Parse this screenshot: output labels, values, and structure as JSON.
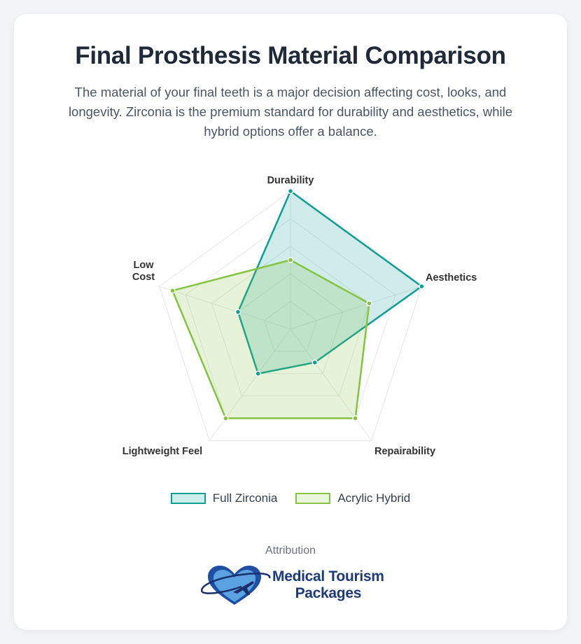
{
  "header": {
    "title": "Final Prosthesis Material Comparison",
    "subtitle": "The material of your final teeth is a major decision affecting cost, looks, and longevity. Zirconia is the premium standard for durability and aesthetics, while hybrid options offer a balance."
  },
  "chart_data": {
    "type": "radar",
    "title": "Final Prosthesis Material Comparison",
    "categories": [
      "Durability",
      "Aesthetics",
      "Repairability",
      "Lightweight Feel",
      "Low Cost"
    ],
    "range": [
      0,
      10
    ],
    "grid_rings": 5,
    "series": [
      {
        "name": "Full Zirconia",
        "values": [
          10,
          10,
          3,
          4,
          4
        ],
        "stroke": "#0d9e94",
        "fill": "rgba(13,158,148,0.2)"
      },
      {
        "name": "Acrylic Hybrid",
        "values": [
          5,
          6,
          8,
          8,
          9
        ],
        "stroke": "#84c441",
        "fill": "rgba(132,196,65,0.2)"
      }
    ],
    "legend_position": "bottom"
  },
  "legend": [
    {
      "label": "Full Zirconia",
      "stroke": "#0d9e94",
      "fill": "#cdeeeb"
    },
    {
      "label": "Acrylic Hybrid",
      "stroke": "#84c441",
      "fill": "#e9f5dc"
    }
  ],
  "footer": {
    "attribution_label": "Attribution",
    "logo_line1": "Medical Tourism",
    "logo_line2": "Packages"
  }
}
